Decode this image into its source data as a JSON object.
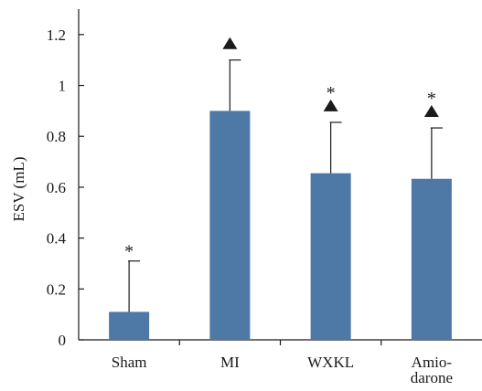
{
  "chart_data": {
    "type": "bar",
    "categories": [
      [
        "Sham"
      ],
      [
        "MI"
      ],
      [
        "WXKL"
      ],
      [
        "Amio-",
        "darone"
      ]
    ],
    "values": [
      0.11,
      0.9,
      0.655,
      0.633
    ],
    "error": [
      0.2,
      0.2,
      0.2,
      0.2
    ],
    "annotations": [
      [
        "*"
      ],
      [
        "▲"
      ],
      [
        "*",
        "▲"
      ],
      [
        "*",
        "▲"
      ]
    ],
    "xlabel": "",
    "ylabel": "ESV (mL)",
    "ylim": [
      0,
      1.2
    ],
    "yticks": [
      0,
      0.2,
      0.4,
      0.6,
      0.8,
      1,
      1.2
    ],
    "ytick_labels": [
      "0",
      "0.2",
      "0.4",
      "0.6",
      "0.8",
      "1",
      "1.2"
    ],
    "bar_color": "#4e79a7",
    "grid": false,
    "legend": false
  }
}
